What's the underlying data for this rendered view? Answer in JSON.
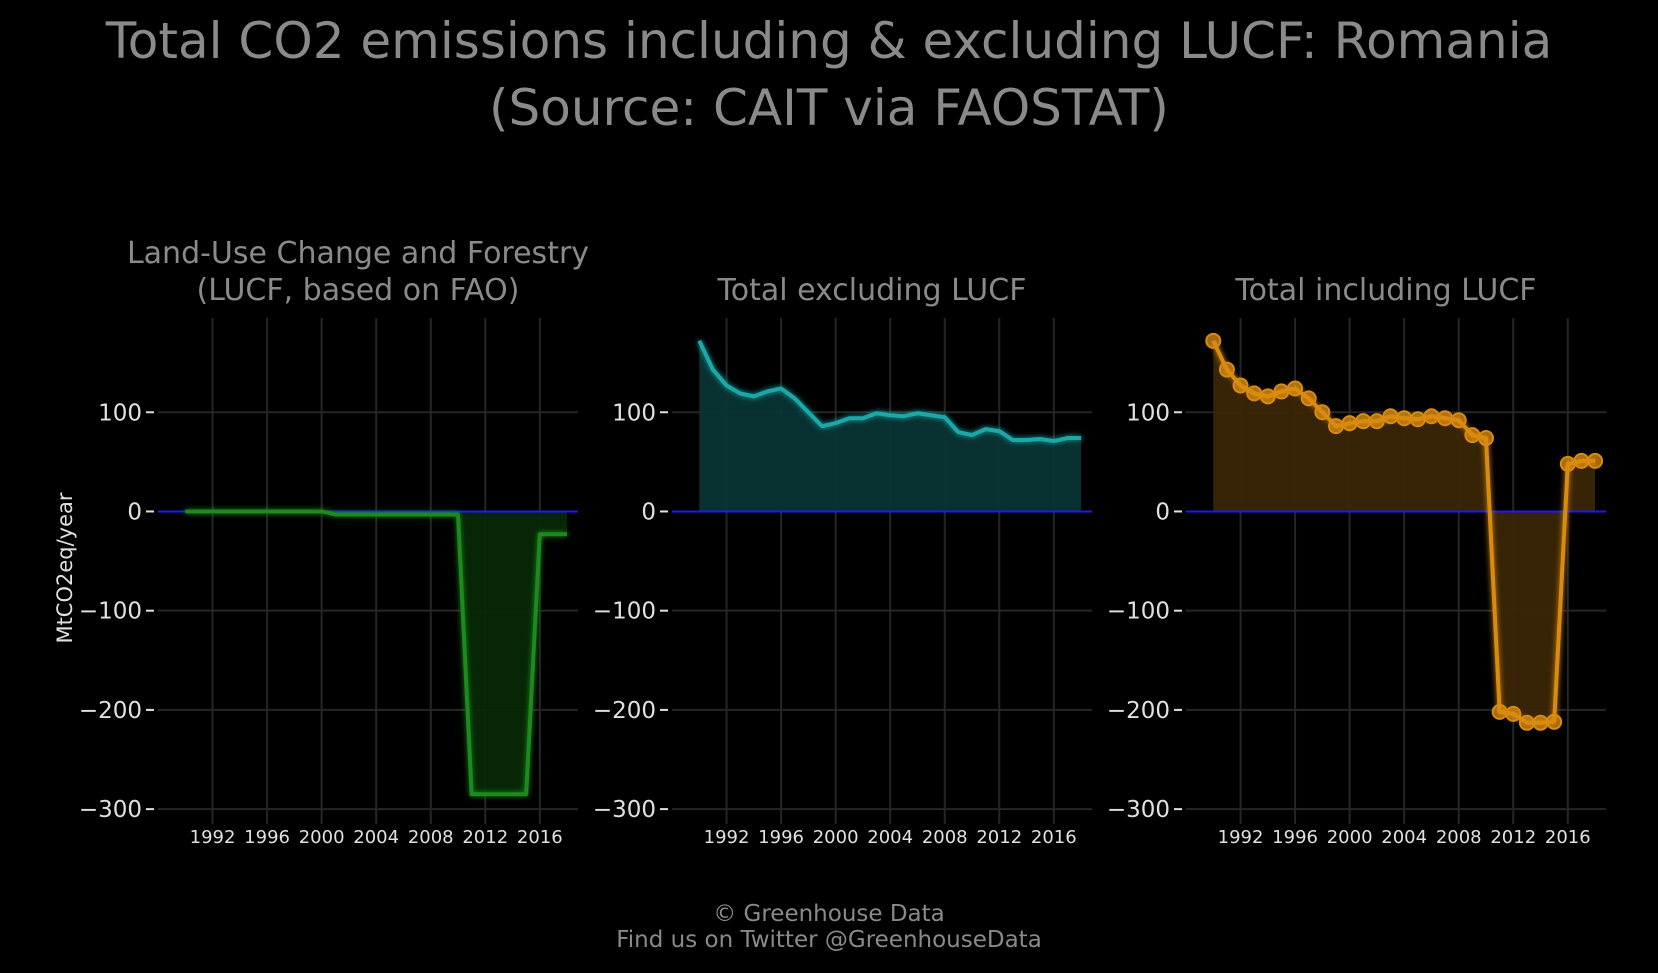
{
  "title": {
    "line1": "Total CO2 emissions including & excluding LUCF: Romania",
    "line2": "(Source: CAIT via FAOSTAT)"
  },
  "ylabel": "MtCO2eq/year",
  "footer": {
    "line1": "© Greenhouse Data",
    "line2": "Find us on Twitter @GreenhouseData"
  },
  "chart_data": [
    {
      "type": "area",
      "title_lines": [
        "Land-Use Change and Forestry",
        "(LUCF, based on FAO)"
      ],
      "color": "#1a8a1a",
      "fill": "#062806",
      "markers": false,
      "x": [
        1990,
        1991,
        1992,
        1993,
        1994,
        1995,
        1996,
        1997,
        1998,
        1999,
        2000,
        2001,
        2002,
        2003,
        2004,
        2005,
        2006,
        2007,
        2008,
        2009,
        2010,
        2011,
        2012,
        2013,
        2014,
        2015,
        2016,
        2017,
        2018
      ],
      "y": [
        0,
        0,
        0,
        0,
        0,
        0,
        0,
        0,
        0,
        0,
        0,
        -3,
        -3,
        -3,
        -3,
        -3,
        -3,
        -3,
        -3,
        -3,
        -3,
        -285,
        -285,
        -285,
        -285,
        -285,
        -23,
        -23,
        -23
      ],
      "xticks": [
        1992,
        1996,
        2000,
        2004,
        2008,
        2012,
        2016
      ],
      "yticks": [
        100,
        0,
        -100,
        -200,
        -300
      ],
      "ytick_labels": [
        "100",
        "0",
        "−100",
        "−200",
        "−300"
      ],
      "xlim": [
        1988,
        2018.8
      ],
      "ylim": [
        -315,
        195
      ],
      "baseline_color": "#1a1aff"
    },
    {
      "type": "area",
      "title_lines": [
        "Total excluding LUCF"
      ],
      "color": "#1aa8a8",
      "fill": "#0a3434",
      "markers": false,
      "x": [
        1990,
        1991,
        1992,
        1993,
        1994,
        1995,
        1996,
        1997,
        1998,
        1999,
        2000,
        2001,
        2002,
        2003,
        2004,
        2005,
        2006,
        2007,
        2008,
        2009,
        2010,
        2011,
        2012,
        2013,
        2014,
        2015,
        2016,
        2017,
        2018
      ],
      "y": [
        172,
        143,
        127,
        119,
        116,
        121,
        124,
        114,
        100,
        86,
        89,
        94,
        94,
        99,
        97,
        96,
        99,
        97,
        95,
        80,
        77,
        83,
        81,
        72,
        72,
        73,
        71,
        74,
        74
      ],
      "xticks": [
        1992,
        1996,
        2000,
        2004,
        2008,
        2012,
        2016
      ],
      "yticks": [
        100,
        0,
        -100,
        -200,
        -300
      ],
      "ytick_labels": [
        "100",
        "0",
        "−100",
        "−200",
        "−300"
      ],
      "xlim": [
        1988,
        2018.8
      ],
      "ylim": [
        -315,
        195
      ],
      "baseline_color": "#1a1aff"
    },
    {
      "type": "area",
      "title_lines": [
        "Total including LUCF"
      ],
      "color": "#d98b10",
      "fill": "#3a2506",
      "markers": true,
      "x": [
        1990,
        1991,
        1992,
        1993,
        1994,
        1995,
        1996,
        1997,
        1998,
        1999,
        2000,
        2001,
        2002,
        2003,
        2004,
        2005,
        2006,
        2007,
        2008,
        2009,
        2010,
        2011,
        2012,
        2013,
        2014,
        2015,
        2016,
        2017,
        2018
      ],
      "y": [
        172,
        143,
        127,
        119,
        116,
        121,
        124,
        114,
        100,
        86,
        89,
        91,
        91,
        96,
        94,
        93,
        96,
        94,
        92,
        77,
        74,
        -202,
        -204,
        -213,
        -213,
        -212,
        48,
        51,
        51
      ],
      "xticks": [
        1992,
        1996,
        2000,
        2004,
        2008,
        2012,
        2016
      ],
      "yticks": [
        100,
        0,
        -100,
        -200,
        -300
      ],
      "ytick_labels": [
        "100",
        "0",
        "−100",
        "−200",
        "−300"
      ],
      "xlim": [
        1988,
        2018.8
      ],
      "ylim": [
        -315,
        195
      ],
      "baseline_color": "#1a1aff"
    }
  ]
}
